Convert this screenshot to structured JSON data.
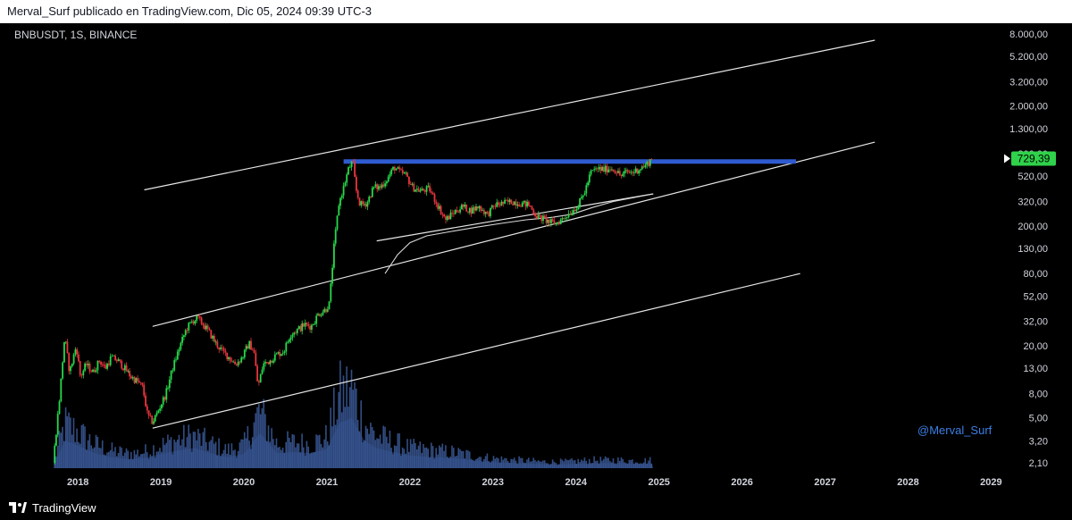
{
  "header": {
    "publisher_text": "Merval_Surf publicado en TradingView.com, Dic 05, 2024 09:39 UTC-3"
  },
  "footer": {
    "brand": "TradingView"
  },
  "chart_data": {
    "type": "candlestick",
    "symbol_label": "BNBUSDT, 1S, BINANCE",
    "watermark": "@Merval_Surf",
    "y_scale": "log",
    "x_tick_labels": [
      "2018",
      "2019",
      "2020",
      "2021",
      "2022",
      "2023",
      "2024",
      "2025",
      "2026",
      "2027",
      "2028",
      "2029"
    ],
    "y_tick_labels": [
      "8.000,00",
      "5.200,00",
      "3.200,00",
      "2.000,00",
      "1.300,00",
      "800,00",
      "520,00",
      "320,00",
      "200,00",
      "130,00",
      "80,00",
      "52,00",
      "32,00",
      "20,00",
      "13,00",
      "8,00",
      "5,00",
      "3,20",
      "2,10"
    ],
    "y_ticks": [
      8000,
      5200,
      3200,
      2000,
      1300,
      800,
      520,
      320,
      200,
      130,
      80,
      52,
      32,
      20,
      13,
      8,
      5,
      3.2,
      2.1
    ],
    "last_price_label": "729,39",
    "last_price": 729.39,
    "x_range": [
      2017.6,
      2029.2
    ],
    "y_range": [
      1.9,
      9500
    ],
    "colors": {
      "up": "#26d94a",
      "down": "#e8353c",
      "volume": "#3b5a9a",
      "channel": "#e6e6e6",
      "resistance": "#2f5bd0",
      "ma": "#d8d8d8",
      "axis_text": "#d1d4dc",
      "price_tag_bg": "#2fd24a"
    },
    "price_path": [
      [
        2017.72,
        2.1
      ],
      [
        2017.8,
        7.5
      ],
      [
        2017.86,
        24
      ],
      [
        2017.92,
        12
      ],
      [
        2018.0,
        20
      ],
      [
        2018.05,
        11
      ],
      [
        2018.12,
        14
      ],
      [
        2018.2,
        12
      ],
      [
        2018.28,
        15
      ],
      [
        2018.35,
        13
      ],
      [
        2018.42,
        16
      ],
      [
        2018.5,
        15
      ],
      [
        2018.58,
        13
      ],
      [
        2018.66,
        11
      ],
      [
        2018.74,
        10
      ],
      [
        2018.8,
        9
      ],
      [
        2018.86,
        5.2
      ],
      [
        2018.92,
        4.6
      ],
      [
        2019.0,
        6
      ],
      [
        2019.08,
        8
      ],
      [
        2019.16,
        13
      ],
      [
        2019.25,
        20
      ],
      [
        2019.33,
        28
      ],
      [
        2019.4,
        32
      ],
      [
        2019.46,
        34
      ],
      [
        2019.53,
        30
      ],
      [
        2019.6,
        26
      ],
      [
        2019.68,
        21
      ],
      [
        2019.76,
        18
      ],
      [
        2019.84,
        16
      ],
      [
        2019.92,
        14
      ],
      [
        2020.0,
        16
      ],
      [
        2020.08,
        21
      ],
      [
        2020.14,
        18
      ],
      [
        2020.19,
        9
      ],
      [
        2020.25,
        14
      ],
      [
        2020.33,
        15
      ],
      [
        2020.42,
        17
      ],
      [
        2020.5,
        18
      ],
      [
        2020.58,
        25
      ],
      [
        2020.66,
        27
      ],
      [
        2020.75,
        30
      ],
      [
        2020.83,
        29
      ],
      [
        2020.92,
        37
      ],
      [
        2021.0,
        40
      ],
      [
        2021.05,
        45
      ],
      [
        2021.1,
        125
      ],
      [
        2021.16,
        300
      ],
      [
        2021.22,
        420
      ],
      [
        2021.28,
        600
      ],
      [
        2021.33,
        690
      ],
      [
        2021.37,
        400
      ],
      [
        2021.42,
        300
      ],
      [
        2021.5,
        310
      ],
      [
        2021.58,
        420
      ],
      [
        2021.66,
        420
      ],
      [
        2021.75,
        500
      ],
      [
        2021.83,
        620
      ],
      [
        2021.9,
        560
      ],
      [
        2021.97,
        530
      ],
      [
        2022.05,
        420
      ],
      [
        2022.15,
        390
      ],
      [
        2022.25,
        410
      ],
      [
        2022.35,
        300
      ],
      [
        2022.45,
        225
      ],
      [
        2022.55,
        260
      ],
      [
        2022.65,
        290
      ],
      [
        2022.75,
        270
      ],
      [
        2022.85,
        290
      ],
      [
        2022.95,
        250
      ],
      [
        2023.05,
        300
      ],
      [
        2023.15,
        310
      ],
      [
        2023.25,
        320
      ],
      [
        2023.35,
        310
      ],
      [
        2023.45,
        300
      ],
      [
        2023.55,
        240
      ],
      [
        2023.62,
        230
      ],
      [
        2023.7,
        215
      ],
      [
        2023.78,
        210
      ],
      [
        2023.86,
        230
      ],
      [
        2023.95,
        260
      ],
      [
        2024.05,
        300
      ],
      [
        2024.12,
        380
      ],
      [
        2024.2,
        560
      ],
      [
        2024.28,
        600
      ],
      [
        2024.36,
        590
      ],
      [
        2024.44,
        610
      ],
      [
        2024.5,
        580
      ],
      [
        2024.56,
        520
      ],
      [
        2024.62,
        560
      ],
      [
        2024.7,
        560
      ],
      [
        2024.78,
        600
      ],
      [
        2024.86,
        640
      ],
      [
        2024.93,
        729.39
      ]
    ],
    "volume_profile": [
      [
        2017.72,
        0.12
      ],
      [
        2017.85,
        0.55
      ],
      [
        2018.0,
        0.45
      ],
      [
        2018.2,
        0.3
      ],
      [
        2018.4,
        0.22
      ],
      [
        2018.6,
        0.18
      ],
      [
        2018.8,
        0.2
      ],
      [
        2019.0,
        0.28
      ],
      [
        2019.2,
        0.35
      ],
      [
        2019.4,
        0.4
      ],
      [
        2019.6,
        0.3
      ],
      [
        2019.8,
        0.22
      ],
      [
        2020.0,
        0.28
      ],
      [
        2020.19,
        0.7
      ],
      [
        2020.4,
        0.3
      ],
      [
        2020.6,
        0.32
      ],
      [
        2020.8,
        0.3
      ],
      [
        2021.0,
        0.38
      ],
      [
        2021.15,
        0.9
      ],
      [
        2021.3,
        1.0
      ],
      [
        2021.45,
        0.55
      ],
      [
        2021.6,
        0.4
      ],
      [
        2021.8,
        0.32
      ],
      [
        2022.0,
        0.25
      ],
      [
        2022.3,
        0.22
      ],
      [
        2022.5,
        0.2
      ],
      [
        2022.8,
        0.15
      ],
      [
        2023.0,
        0.12
      ],
      [
        2023.3,
        0.1
      ],
      [
        2023.6,
        0.08
      ],
      [
        2023.9,
        0.08
      ],
      [
        2024.2,
        0.1
      ],
      [
        2024.5,
        0.1
      ],
      [
        2024.8,
        0.09
      ],
      [
        2024.93,
        0.1
      ]
    ],
    "moving_average": [
      [
        2021.7,
        80
      ],
      [
        2021.85,
        115
      ],
      [
        2022.0,
        145
      ],
      [
        2022.2,
        165
      ],
      [
        2022.5,
        180
      ],
      [
        2022.8,
        195
      ],
      [
        2023.1,
        210
      ],
      [
        2023.4,
        225
      ],
      [
        2023.7,
        235
      ],
      [
        2023.95,
        250
      ],
      [
        2024.2,
        285
      ],
      [
        2024.45,
        320
      ],
      [
        2024.7,
        345
      ],
      [
        2024.93,
        370
      ]
    ],
    "annotations": {
      "channel_upper": [
        [
          2018.8,
          400
        ],
        [
          2027.6,
          7100
        ]
      ],
      "channel_middle": [
        [
          2018.9,
          29
        ],
        [
          2027.6,
          1000
        ]
      ],
      "channel_lower": [
        [
          2018.9,
          4.1
        ],
        [
          2026.7,
          80
        ]
      ],
      "support_line": [
        [
          2021.6,
          150
        ],
        [
          2024.93,
          370
        ]
      ],
      "resistance": [
        [
          2021.2,
          690
        ],
        [
          2026.65,
          690
        ]
      ]
    }
  }
}
